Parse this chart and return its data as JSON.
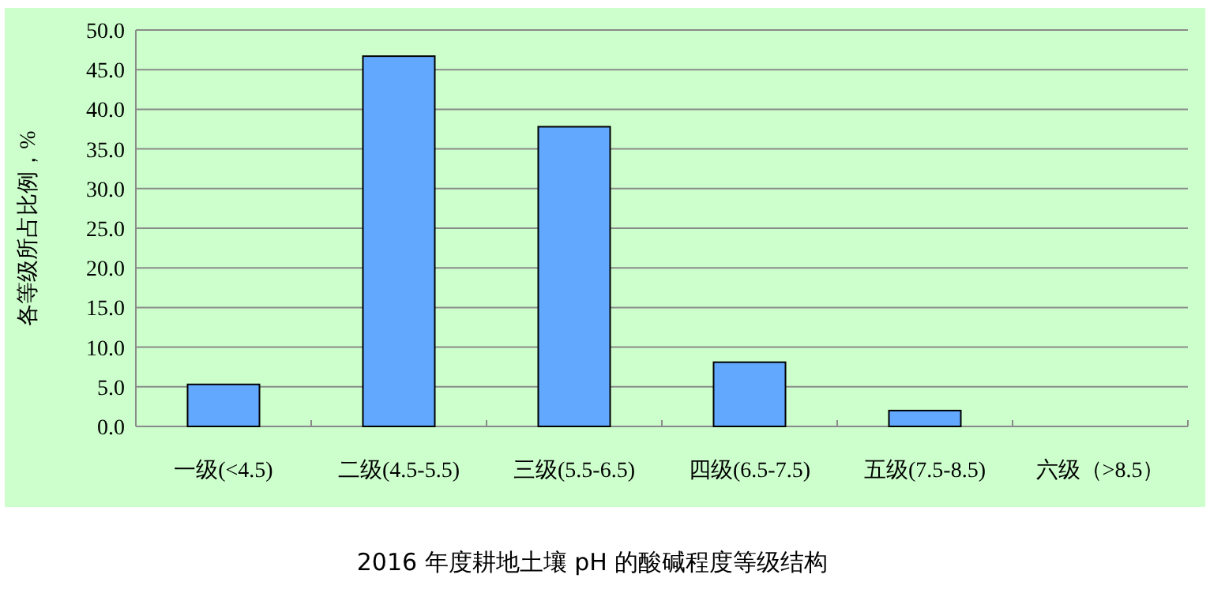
{
  "chart_data": {
    "type": "bar",
    "title": "2016 年度耕地土壤 pH 的酸碱程度等级结构",
    "ylabel": "各等级所占比例，%",
    "categories": [
      "一级(<4.5)",
      "二级(4.5-5.5)",
      "三级(5.5-6.5)",
      "四级(6.5-7.5)",
      "五级(7.5-8.5)",
      "六级（>8.5）"
    ],
    "values": [
      5.3,
      46.7,
      37.8,
      8.1,
      2.0,
      0
    ],
    "color": "#62a8ff",
    "ylim": [
      0,
      50
    ],
    "yticks": [
      {
        "value": 0,
        "label": "0.0"
      },
      {
        "value": 5,
        "label": "5.0"
      },
      {
        "value": 10,
        "label": "10.0"
      },
      {
        "value": 15,
        "label": "15.0"
      },
      {
        "value": 20,
        "label": "20.0"
      },
      {
        "value": 25,
        "label": "25.0"
      },
      {
        "value": 30,
        "label": "30.0"
      },
      {
        "value": 35,
        "label": "35.0"
      },
      {
        "value": 40,
        "label": "40.0"
      },
      {
        "value": 45,
        "label": "45.0"
      },
      {
        "value": 50,
        "label": "50.0"
      }
    ],
    "grid": "y"
  }
}
